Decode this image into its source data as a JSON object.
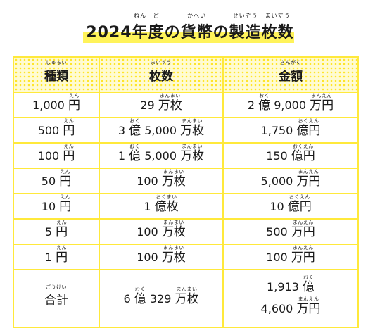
{
  "title": {
    "year": "2024",
    "nen": "年",
    "nen_ruby": "ねん",
    "do": "度",
    "do_ruby": "ど",
    "no1": "の",
    "kahei": "貨幣",
    "kahei_ruby": "かへい",
    "no2": "の",
    "seizou": "製造",
    "seizou_ruby": "せいぞう",
    "maisuu": "枚数",
    "maisuu_ruby": "まいすう"
  },
  "headers": {
    "type": {
      "label": "種類",
      "ruby": "しゅるい"
    },
    "count": {
      "label": "枚数",
      "ruby": "まいすう"
    },
    "amount": {
      "label": "金額",
      "ruby": "きんがく"
    }
  },
  "rows": [
    {
      "type_num": "1,000",
      "type_unit": "円",
      "type_ruby": "えん",
      "count": [
        {
          "t": "29 "
        },
        {
          "t": "万枚",
          "r": "まんまい"
        }
      ],
      "amount": [
        {
          "t": "2 "
        },
        {
          "t": "億",
          "r": "おく"
        },
        {
          "t": " 9,000 "
        },
        {
          "t": "万円",
          "r": "まんえん"
        }
      ]
    },
    {
      "type_num": "500",
      "type_unit": "円",
      "type_ruby": "えん",
      "count": [
        {
          "t": "3 "
        },
        {
          "t": "億",
          "r": "おく"
        },
        {
          "t": " 5,000 "
        },
        {
          "t": "万枚",
          "r": "まんまい"
        }
      ],
      "amount": [
        {
          "t": "1,750 "
        },
        {
          "t": "億円",
          "r": "おくえん"
        }
      ]
    },
    {
      "type_num": "100",
      "type_unit": "円",
      "type_ruby": "えん",
      "count": [
        {
          "t": "1 "
        },
        {
          "t": "億",
          "r": "おく"
        },
        {
          "t": " 5,000 "
        },
        {
          "t": "万枚",
          "r": "まんまい"
        }
      ],
      "amount": [
        {
          "t": "150 "
        },
        {
          "t": "億円",
          "r": "おくえん"
        }
      ]
    },
    {
      "type_num": "50",
      "type_unit": "円",
      "type_ruby": "えん",
      "count": [
        {
          "t": "100 "
        },
        {
          "t": "万枚",
          "r": "まんまい"
        }
      ],
      "amount": [
        {
          "t": "5,000 "
        },
        {
          "t": "万円",
          "r": "まんえん"
        }
      ]
    },
    {
      "type_num": "10",
      "type_unit": "円",
      "type_ruby": "えん",
      "count": [
        {
          "t": "1 "
        },
        {
          "t": "億枚",
          "r": "おくまい"
        }
      ],
      "amount": [
        {
          "t": "10 "
        },
        {
          "t": "億円",
          "r": "おくえん"
        }
      ]
    },
    {
      "type_num": "5",
      "type_unit": "円",
      "type_ruby": "えん",
      "count": [
        {
          "t": "100 "
        },
        {
          "t": "万枚",
          "r": "まんまい"
        }
      ],
      "amount": [
        {
          "t": "500 "
        },
        {
          "t": "万円",
          "r": "まんえん"
        }
      ]
    },
    {
      "type_num": "1",
      "type_unit": "円",
      "type_ruby": "えん",
      "count": [
        {
          "t": "100 "
        },
        {
          "t": "万枚",
          "r": "まんまい"
        }
      ],
      "amount": [
        {
          "t": "100 "
        },
        {
          "t": "万円",
          "r": "まんえん"
        }
      ]
    }
  ],
  "total": {
    "label": "合計",
    "label_ruby": "ごうけい",
    "count": [
      {
        "t": "6 "
      },
      {
        "t": "億",
        "r": "おく"
      },
      {
        "t": " 329 "
      },
      {
        "t": "万枚",
        "r": "まんまい"
      }
    ],
    "amount_line1": [
      {
        "t": "1,913 "
      },
      {
        "t": "億",
        "r": "おく"
      }
    ],
    "amount_line2": [
      {
        "t": "4,600 "
      },
      {
        "t": "万円",
        "r": "まんえん"
      }
    ]
  },
  "colors": {
    "border": "#ffe93b",
    "highlight": "#fff35a",
    "header_dots": "#ffe52a"
  }
}
